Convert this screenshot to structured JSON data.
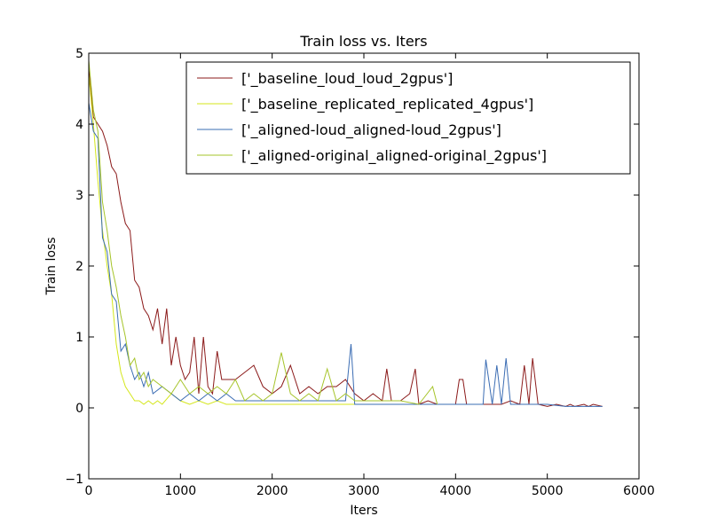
{
  "chart_data": {
    "type": "line",
    "title": "Train loss  vs. Iters",
    "xlabel": "Iters",
    "ylabel": "Train loss",
    "xlim": [
      0,
      6000
    ],
    "ylim": [
      -1,
      5
    ],
    "x_ticks": [
      0,
      1000,
      2000,
      3000,
      4000,
      5000,
      6000
    ],
    "y_ticks": [
      -1,
      0,
      1,
      2,
      3,
      4,
      5
    ],
    "grid": false,
    "legend_position": "top-right",
    "series": [
      {
        "name": "['_baseline_loud_loud_2gpus']",
        "color": "#8b1a1a",
        "x": [
          0,
          50,
          100,
          150,
          200,
          250,
          300,
          350,
          400,
          450,
          500,
          550,
          600,
          650,
          700,
          750,
          800,
          850,
          900,
          950,
          1000,
          1050,
          1100,
          1150,
          1200,
          1250,
          1300,
          1350,
          1400,
          1450,
          1500,
          1600,
          1700,
          1800,
          1900,
          2000,
          2100,
          2200,
          2300,
          2400,
          2500,
          2600,
          2700,
          2800,
          2900,
          3000,
          3100,
          3200,
          3250,
          3300,
          3400,
          3500,
          3560,
          3600,
          3700,
          3800,
          3900,
          4000,
          4040,
          4080,
          4120,
          4200,
          4300,
          4400,
          4500,
          4600,
          4700,
          4750,
          4800,
          4840,
          4900,
          5000,
          5100,
          5200,
          5250,
          5300,
          5400,
          5450,
          5500,
          5600
        ],
        "values": [
          4.8,
          4.1,
          4.0,
          3.9,
          3.7,
          3.4,
          3.3,
          2.9,
          2.6,
          2.5,
          1.8,
          1.7,
          1.4,
          1.3,
          1.1,
          1.4,
          0.9,
          1.4,
          0.6,
          1.0,
          0.6,
          0.4,
          0.5,
          1.0,
          0.2,
          1.0,
          0.3,
          0.2,
          0.8,
          0.4,
          0.4,
          0.4,
          0.5,
          0.6,
          0.3,
          0.2,
          0.3,
          0.6,
          0.2,
          0.3,
          0.2,
          0.3,
          0.3,
          0.4,
          0.2,
          0.1,
          0.2,
          0.1,
          0.55,
          0.1,
          0.1,
          0.2,
          0.55,
          0.05,
          0.1,
          0.05,
          0.05,
          0.05,
          0.4,
          0.4,
          0.05,
          0.05,
          0.05,
          0.05,
          0.05,
          0.1,
          0.05,
          0.6,
          0.05,
          0.7,
          0.05,
          0.02,
          0.05,
          0.02,
          0.05,
          0.02,
          0.05,
          0.02,
          0.05,
          0.02
        ]
      },
      {
        "name": "['_baseline_replicated_replicated_4gpus']",
        "color": "#d4e61a",
        "x": [
          0,
          50,
          100,
          150,
          200,
          250,
          300,
          350,
          400,
          450,
          500,
          550,
          600,
          650,
          700,
          750,
          800,
          900,
          1000,
          1100,
          1200,
          1300,
          1400,
          1500,
          1600,
          1700,
          1800,
          1900,
          2000,
          2100,
          2200,
          2300,
          2400,
          2500,
          2600,
          2700,
          2800,
          2900,
          3000
        ],
        "values": [
          4.7,
          4.0,
          3.2,
          2.5,
          2.0,
          1.6,
          0.9,
          0.5,
          0.3,
          0.2,
          0.1,
          0.1,
          0.05,
          0.1,
          0.05,
          0.1,
          0.05,
          0.2,
          0.1,
          0.05,
          0.1,
          0.05,
          0.1,
          0.05,
          0.05,
          0.05,
          0.05,
          0.05,
          0.05,
          0.05,
          0.05,
          0.05,
          0.05,
          0.05,
          0.05,
          0.05,
          0.05,
          0.05,
          0.05
        ]
      },
      {
        "name": "['_aligned-loud_aligned-loud_2gpus']",
        "color": "#3a6cb3",
        "x": [
          0,
          50,
          100,
          150,
          200,
          250,
          300,
          350,
          400,
          450,
          500,
          550,
          600,
          650,
          700,
          800,
          900,
          1000,
          1100,
          1200,
          1300,
          1400,
          1500,
          1600,
          1700,
          1800,
          1900,
          2000,
          2100,
          2200,
          2300,
          2400,
          2500,
          2600,
          2700,
          2800,
          2860,
          2900,
          3000,
          3100,
          3200,
          3300,
          3400,
          3500,
          3600,
          3700,
          3800,
          3900,
          4000,
          4100,
          4200,
          4300,
          4330,
          4400,
          4450,
          4500,
          4550,
          4600,
          4700,
          4800,
          4900,
          5000,
          5200,
          5400,
          5600
        ],
        "values": [
          4.3,
          3.9,
          3.8,
          2.4,
          2.2,
          1.6,
          1.5,
          0.8,
          0.9,
          0.6,
          0.4,
          0.5,
          0.3,
          0.5,
          0.2,
          0.3,
          0.2,
          0.1,
          0.2,
          0.1,
          0.2,
          0.1,
          0.2,
          0.1,
          0.1,
          0.1,
          0.1,
          0.1,
          0.1,
          0.1,
          0.1,
          0.1,
          0.1,
          0.1,
          0.1,
          0.1,
          0.9,
          0.05,
          0.05,
          0.05,
          0.05,
          0.05,
          0.05,
          0.05,
          0.05,
          0.05,
          0.05,
          0.05,
          0.05,
          0.05,
          0.05,
          0.05,
          0.68,
          0.05,
          0.6,
          0.05,
          0.7,
          0.05,
          0.05,
          0.05,
          0.05,
          0.05,
          0.02,
          0.02,
          0.02
        ]
      },
      {
        "name": "['_aligned-original_aligned-original_2gpus']",
        "color": "#a6c42a",
        "x": [
          0,
          50,
          100,
          150,
          200,
          250,
          300,
          350,
          400,
          450,
          500,
          550,
          600,
          650,
          700,
          800,
          900,
          1000,
          1100,
          1200,
          1300,
          1400,
          1500,
          1600,
          1700,
          1800,
          1900,
          2000,
          2100,
          2200,
          2300,
          2400,
          2500,
          2600,
          2700,
          2800,
          2900,
          3000,
          3200,
          3400,
          3600,
          3750,
          3800
        ],
        "values": [
          4.9,
          4.2,
          3.9,
          2.9,
          2.5,
          2.0,
          1.7,
          1.3,
          1.0,
          0.6,
          0.7,
          0.4,
          0.5,
          0.3,
          0.4,
          0.3,
          0.2,
          0.4,
          0.2,
          0.3,
          0.2,
          0.3,
          0.2,
          0.4,
          0.1,
          0.2,
          0.1,
          0.2,
          0.78,
          0.2,
          0.1,
          0.2,
          0.1,
          0.55,
          0.1,
          0.2,
          0.1,
          0.1,
          0.1,
          0.1,
          0.05,
          0.3,
          0.05
        ]
      }
    ]
  }
}
